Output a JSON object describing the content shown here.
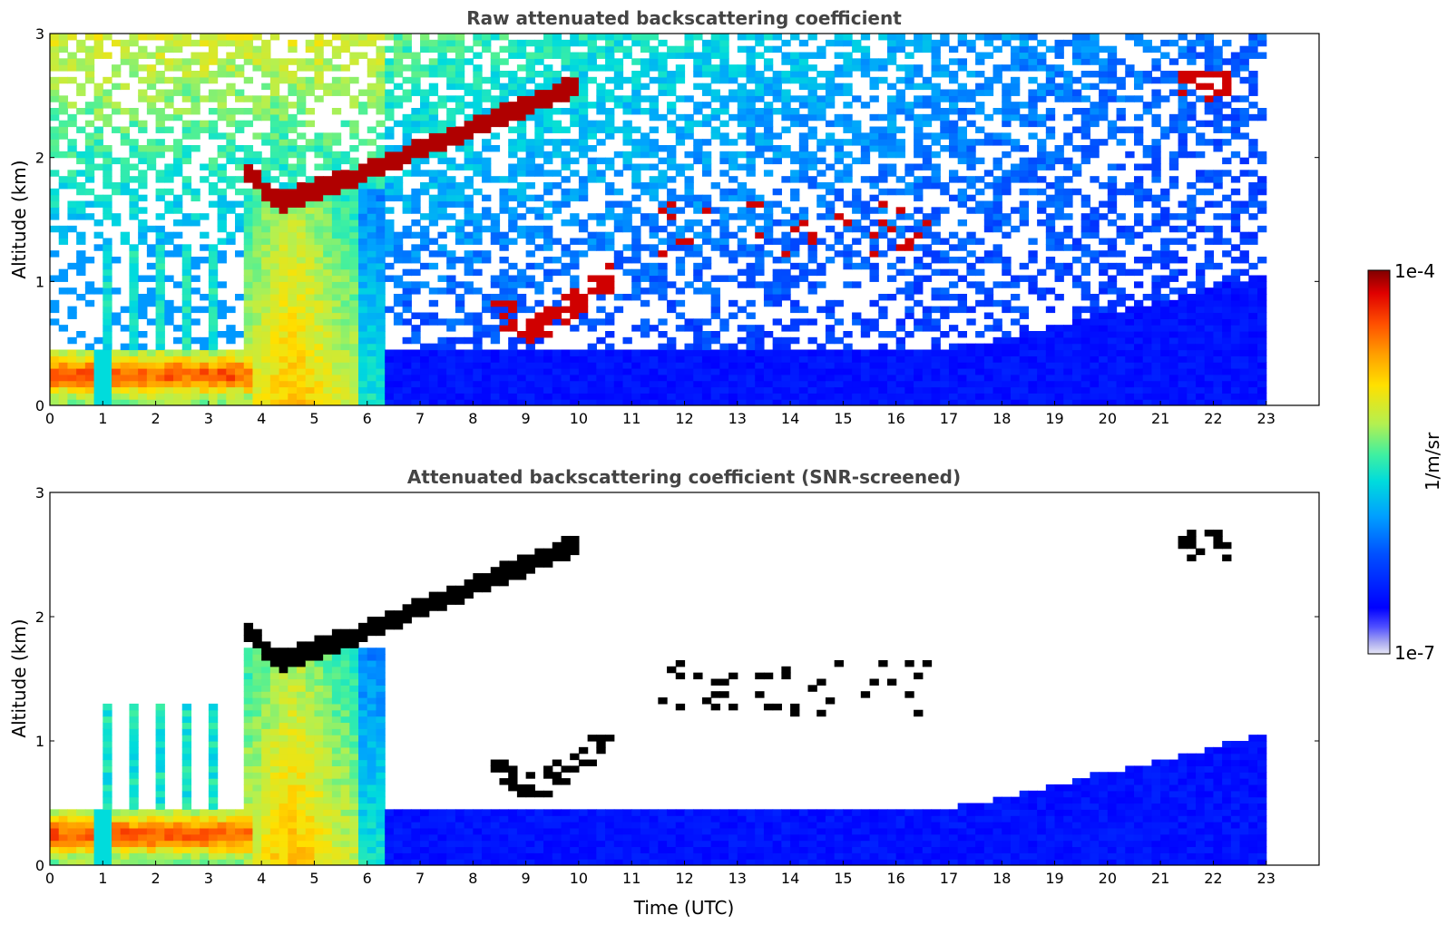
{
  "chart_data": [
    {
      "type": "heatmap",
      "title": "Raw attenuated backscattering coefficient",
      "xlabel": "",
      "ylabel": "Altitude (km)",
      "xlim": [
        0,
        24
      ],
      "ylim": [
        0,
        3
      ],
      "xticks": [
        "0",
        "1",
        "2",
        "3",
        "4",
        "5",
        "6",
        "7",
        "8",
        "9",
        "10",
        "11",
        "12",
        "13",
        "14",
        "15",
        "16",
        "17",
        "18",
        "19",
        "20",
        "21",
        "22",
        "23"
      ],
      "yticks": [
        "0",
        "1",
        "2",
        "3"
      ],
      "data_extent_hours": [
        0,
        23
      ],
      "features": [
        {
          "name": "boundary layer aerosol",
          "time_range": [
            0,
            3.9
          ],
          "altitude_km": [
            0.05,
            0.45
          ],
          "level": "high"
        },
        {
          "name": "dense aerosol/cloud column",
          "time_range": [
            3.6,
            6.3
          ],
          "altitude_km": [
            0,
            1.75
          ],
          "level": "high"
        },
        {
          "name": "cloud layer",
          "time_range": [
            3.6,
            10.0
          ],
          "altitude_km": [
            1.6,
            2.6
          ],
          "level": "max"
        },
        {
          "name": "low cloud",
          "time_range": [
            8.3,
            10.6
          ],
          "altitude_km": [
            0.6,
            1.2
          ],
          "level": "max"
        },
        {
          "name": "scattered clouds",
          "time_range": [
            11.5,
            16.0
          ],
          "altitude_km": [
            1.2,
            1.6
          ],
          "level": "max"
        },
        {
          "name": "high cloud",
          "time_range": [
            21.5,
            22.2
          ],
          "altitude_km": [
            2.5,
            2.7
          ],
          "level": "max"
        },
        {
          "name": "background noise",
          "time_range": [
            6.3,
            23
          ],
          "altitude_km": [
            0,
            3
          ],
          "level": "low"
        }
      ]
    },
    {
      "type": "heatmap",
      "title": "Attenuated backscattering coefficient (SNR-screened)",
      "xlabel": "Time (UTC)",
      "ylabel": "Altitude (km)",
      "xlim": [
        0,
        24
      ],
      "ylim": [
        0,
        3
      ],
      "xticks": [
        "0",
        "1",
        "2",
        "3",
        "4",
        "5",
        "6",
        "7",
        "8",
        "9",
        "10",
        "11",
        "12",
        "13",
        "14",
        "15",
        "16",
        "17",
        "18",
        "19",
        "20",
        "21",
        "22",
        "23"
      ],
      "yticks": [
        "0",
        "1",
        "2",
        "3"
      ],
      "data_extent_hours": [
        0,
        23
      ],
      "features": [
        {
          "name": "boundary layer aerosol",
          "time_range": [
            0,
            3.9
          ],
          "altitude_km": [
            0.05,
            0.45
          ],
          "level": "high"
        },
        {
          "name": "dense aerosol/cloud column",
          "time_range": [
            3.6,
            6.3
          ],
          "altitude_km": [
            0,
            1.75
          ],
          "level": "high"
        },
        {
          "name": "cloud layer (screened)",
          "time_range": [
            3.6,
            10.0
          ],
          "altitude_km": [
            1.6,
            2.6
          ],
          "level": "saturated"
        },
        {
          "name": "low cloud",
          "time_range": [
            8.3,
            10.6
          ],
          "altitude_km": [
            0.6,
            1.2
          ],
          "level": "saturated"
        },
        {
          "name": "scattered clouds",
          "time_range": [
            11.5,
            16.6
          ],
          "altitude_km": [
            1.2,
            1.7
          ],
          "level": "saturated"
        },
        {
          "name": "residual layer",
          "time_range": [
            6.3,
            23
          ],
          "altitude_km": [
            0,
            1.1
          ],
          "level": "low"
        }
      ]
    }
  ],
  "colorbar": {
    "top_label": "1e-4",
    "bottom_label": "1e-7",
    "units": "1/m/sr",
    "scale": "log",
    "range": [
      1e-07,
      0.0001
    ],
    "colors": [
      "#e6e6f5",
      "#aaaaf0",
      "#5050ff",
      "#0000ff",
      "#0050ff",
      "#00a0ff",
      "#00dcdc",
      "#40f0a0",
      "#b4f050",
      "#ffe000",
      "#ffa000",
      "#ff5000",
      "#e00000",
      "#800000"
    ]
  }
}
